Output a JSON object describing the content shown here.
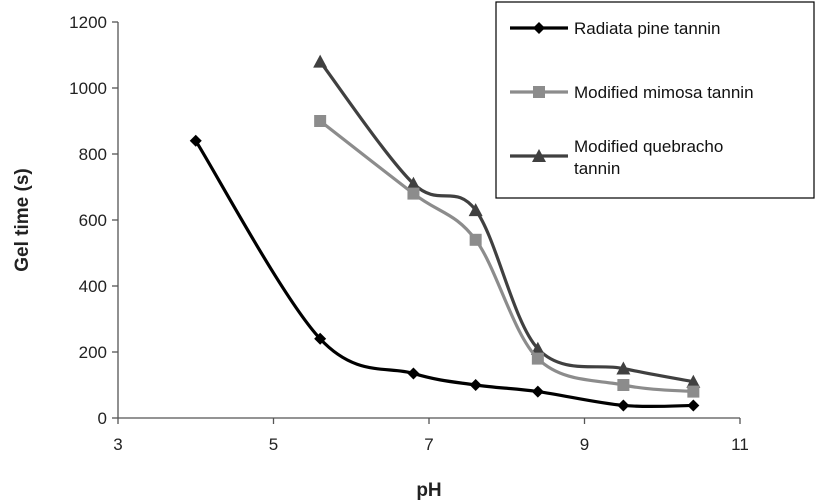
{
  "chart_data": {
    "type": "line",
    "xlabel": "pH",
    "ylabel": "Gel time (s)",
    "xlim": [
      3,
      11
    ],
    "ylim": [
      0,
      1200
    ],
    "xticks": [
      3,
      5,
      7,
      9,
      11
    ],
    "yticks": [
      0,
      200,
      400,
      600,
      800,
      1000,
      1200
    ],
    "grid": false,
    "smooth": true,
    "legend_position": "top-right",
    "series": [
      {
        "name": "Radiata pine tannin",
        "color": "#000000",
        "marker": "diamond",
        "x": [
          4.0,
          5.6,
          6.8,
          7.6,
          8.4,
          9.5,
          10.4
        ],
        "y": [
          840,
          240,
          135,
          100,
          80,
          38,
          38
        ]
      },
      {
        "name": "Modified mimosa tannin",
        "color": "#8c8c8c",
        "marker": "square",
        "x": [
          5.6,
          6.8,
          7.6,
          8.4,
          9.5,
          10.4
        ],
        "y": [
          900,
          680,
          540,
          180,
          100,
          80
        ]
      },
      {
        "name": "Modified quebracho tannin",
        "color": "#404040",
        "marker": "triangle",
        "x": [
          5.6,
          6.8,
          7.6,
          8.4,
          9.5,
          10.4
        ],
        "y": [
          1080,
          710,
          630,
          210,
          150,
          110
        ]
      }
    ]
  }
}
